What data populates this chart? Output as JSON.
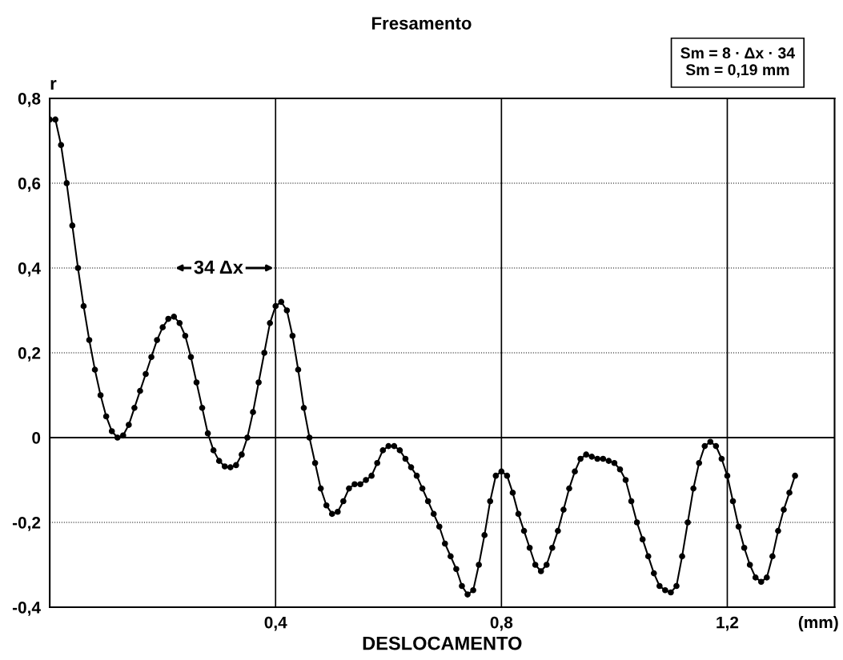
{
  "chart_data": {
    "type": "line",
    "title": "Fresamento",
    "xlabel": "DESLOCAMENTO",
    "ylabel": "r",
    "xlim": [
      0,
      1.39
    ],
    "ylim": [
      -0.4,
      0.8
    ],
    "xticks": [
      {
        "value": 0.4,
        "label": "0,4"
      },
      {
        "value": 0.8,
        "label": "0,8"
      },
      {
        "value": 1.2,
        "label": "1,2"
      }
    ],
    "yticks": [
      {
        "value": -0.4,
        "label": "-0,4"
      },
      {
        "value": -0.2,
        "label": "-0,2"
      },
      0,
      {
        "value": 0.2,
        "label": "0,2"
      },
      {
        "value": 0.4,
        "label": "0,4"
      },
      {
        "value": 0.6,
        "label": "0,6"
      },
      {
        "value": 0.8,
        "label": "0,8"
      }
    ],
    "grid": true,
    "marker": "circle",
    "line_style": "solid",
    "ref_lines": [
      {
        "axis": "y",
        "value": 0,
        "color": "#000000",
        "line_style": "solid"
      }
    ],
    "annotations": [
      "34 Δx",
      "Sm = 8 · Δx · 34",
      "Sm = 0,19 mm",
      "(mm)"
    ],
    "x": [
      0,
      0.01,
      0.02,
      0.03,
      0.04,
      0.05,
      0.06,
      0.07,
      0.08,
      0.09,
      0.1,
      0.11,
      0.12,
      0.13,
      0.14,
      0.15,
      0.16,
      0.17,
      0.18,
      0.19,
      0.2,
      0.21,
      0.22,
      0.23,
      0.24,
      0.25,
      0.26,
      0.27,
      0.28,
      0.29,
      0.3,
      0.31,
      0.32,
      0.33,
      0.34,
      0.35,
      0.36,
      0.37,
      0.38,
      0.39,
      0.4,
      0.41,
      0.42,
      0.43,
      0.44,
      0.45,
      0.46,
      0.47,
      0.48,
      0.49,
      0.5,
      0.51,
      0.52,
      0.53,
      0.54,
      0.55,
      0.56,
      0.57,
      0.58,
      0.59,
      0.6,
      0.61,
      0.62,
      0.63,
      0.64,
      0.65,
      0.66,
      0.67,
      0.68,
      0.69,
      0.7,
      0.71,
      0.72,
      0.73,
      0.74,
      0.75,
      0.76,
      0.77,
      0.78,
      0.79,
      0.8,
      0.81,
      0.82,
      0.83,
      0.84,
      0.85,
      0.86,
      0.87,
      0.88,
      0.89,
      0.9,
      0.91,
      0.92,
      0.93,
      0.94,
      0.95,
      0.96,
      0.97,
      0.98,
      0.99,
      1.0,
      1.01,
      1.02,
      1.03,
      1.04,
      1.05,
      1.06,
      1.07,
      1.08,
      1.09,
      1.1,
      1.11,
      1.12,
      1.13,
      1.14,
      1.15,
      1.16,
      1.17,
      1.18,
      1.19,
      1.2,
      1.21,
      1.22,
      1.23,
      1.24,
      1.25,
      1.26,
      1.27,
      1.28,
      1.29,
      1.3,
      1.31,
      1.32
    ],
    "series": [
      {
        "color": "#000000",
        "values": [
          0.75,
          0.75,
          0.69,
          0.6,
          0.5,
          0.4,
          0.31,
          0.23,
          0.16,
          0.1,
          0.05,
          0.015,
          0.0,
          0.005,
          0.03,
          0.07,
          0.11,
          0.15,
          0.19,
          0.23,
          0.26,
          0.28,
          0.285,
          0.27,
          0.24,
          0.19,
          0.13,
          0.07,
          0.01,
          -0.03,
          -0.055,
          -0.068,
          -0.07,
          -0.065,
          -0.04,
          0.0,
          0.06,
          0.13,
          0.2,
          0.27,
          0.31,
          0.32,
          0.3,
          0.24,
          0.16,
          0.07,
          0.0,
          -0.06,
          -0.12,
          -0.16,
          -0.18,
          -0.175,
          -0.15,
          -0.12,
          -0.11,
          -0.11,
          -0.1,
          -0.09,
          -0.06,
          -0.03,
          -0.02,
          -0.02,
          -0.03,
          -0.05,
          -0.07,
          -0.09,
          -0.12,
          -0.15,
          -0.18,
          -0.21,
          -0.25,
          -0.28,
          -0.31,
          -0.35,
          -0.37,
          -0.36,
          -0.3,
          -0.23,
          -0.15,
          -0.09,
          -0.08,
          -0.09,
          -0.13,
          -0.18,
          -0.22,
          -0.26,
          -0.3,
          -0.315,
          -0.3,
          -0.26,
          -0.22,
          -0.17,
          -0.12,
          -0.08,
          -0.05,
          -0.04,
          -0.045,
          -0.05,
          -0.05,
          -0.055,
          -0.06,
          -0.075,
          -0.1,
          -0.15,
          -0.2,
          -0.24,
          -0.28,
          -0.32,
          -0.35,
          -0.36,
          -0.365,
          -0.35,
          -0.28,
          -0.2,
          -0.12,
          -0.06,
          -0.02,
          -0.01,
          -0.02,
          -0.05,
          -0.09,
          -0.15,
          -0.21,
          -0.26,
          -0.3,
          -0.33,
          -0.34,
          -0.33,
          -0.28,
          -0.22,
          -0.17,
          -0.13,
          -0.09
        ]
      }
    ]
  }
}
